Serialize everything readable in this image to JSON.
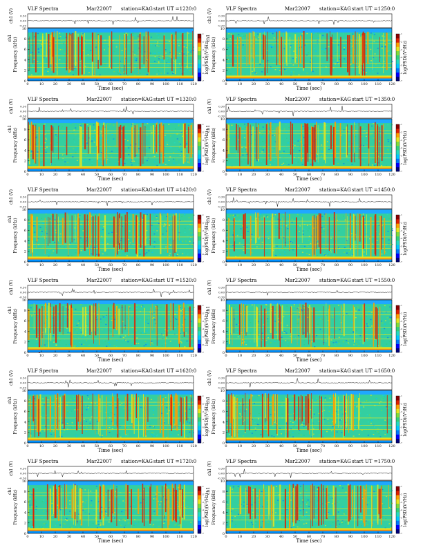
{
  "palette": [
    "#00007a",
    "#0000ff",
    "#0078ff",
    "#00c8ff",
    "#22dcc0",
    "#33d27a",
    "#7edc3c",
    "#e6e61e",
    "#ffa000",
    "#e02000",
    "#8a0000"
  ],
  "common": {
    "title": "VLF Spectra",
    "date": "Mar22007",
    "station": "station=KAG",
    "start_prefix": "start  UT =",
    "ch_label": "ch1 (V)",
    "freq_label": "Frequency  (kHz)",
    "time_label": "Time  (sec)",
    "cb_label": "log(PSD)(V²/Hz)",
    "ch_ticks": [
      "0.30",
      "0.00",
      "-0.30"
    ],
    "freq_ticks": [
      "10",
      "8",
      "6",
      "4",
      "2",
      "0"
    ],
    "time_ticks": [
      "0",
      "10",
      "20",
      "30",
      "40",
      "50",
      "60",
      "70",
      "80",
      "90",
      "100",
      "110",
      "120"
    ],
    "cb_ticks": [
      "-1",
      "-2",
      "-3",
      "-4",
      "-5",
      "-6",
      "-7"
    ]
  },
  "chart_data": [
    {
      "type": "heatmap",
      "panel": "1",
      "start_ut": "1220:0",
      "channel": "ch1",
      "xlabel": "Time  (sec)",
      "ylabel": "Frequency  (kHz)",
      "xlim": [
        0,
        120
      ],
      "ylim": [
        0,
        10
      ],
      "colorbar_label": "log(PSD)(V²/Hz)"
    },
    {
      "type": "heatmap",
      "panel": "2",
      "start_ut": "1250:0",
      "channel": "ch1",
      "xlabel": "Time  (sec)",
      "ylabel": "Frequency  (kHz)",
      "xlim": [
        0,
        120
      ],
      "ylim": [
        0,
        10
      ],
      "colorbar_label": "log(PSD)(V²/Hz)"
    },
    {
      "type": "heatmap",
      "panel": "3",
      "start_ut": "1320:0",
      "channel": "ch1",
      "xlabel": "Time  (sec)",
      "ylabel": "Frequency  (kHz)",
      "xlim": [
        0,
        120
      ],
      "ylim": [
        0,
        10
      ],
      "colorbar_label": "log(PSD)(V²/Hz)"
    },
    {
      "type": "heatmap",
      "panel": "4",
      "start_ut": "1350:0",
      "channel": "ch1",
      "xlabel": "Time  (sec)",
      "ylabel": "Frequency  (kHz)",
      "xlim": [
        0,
        120
      ],
      "ylim": [
        0,
        10
      ],
      "colorbar_label": "log(PSD)(V²/Hz)"
    },
    {
      "type": "heatmap",
      "panel": "5",
      "start_ut": "1420:0",
      "channel": "ch1",
      "xlabel": "Time  (sec)",
      "ylabel": "Frequency  (kHz)",
      "xlim": [
        0,
        120
      ],
      "ylim": [
        0,
        10
      ],
      "colorbar_label": "log(PSD)(V²/Hz)"
    },
    {
      "type": "heatmap",
      "panel": "6",
      "start_ut": "1450:0",
      "channel": "ch1",
      "xlabel": "Time  (sec)",
      "ylabel": "Frequency  (kHz)",
      "xlim": [
        0,
        120
      ],
      "ylim": [
        0,
        10
      ],
      "colorbar_label": "log(PSD)(V²/Hz)"
    },
    {
      "type": "heatmap",
      "panel": "7",
      "start_ut": "1520:0",
      "channel": "ch1",
      "xlabel": "Time  (sec)",
      "ylabel": "Frequency  (kHz)",
      "xlim": [
        0,
        120
      ],
      "ylim": [
        0,
        10
      ],
      "colorbar_label": "log(PSD)(V²/Hz)"
    },
    {
      "type": "heatmap",
      "panel": "8",
      "start_ut": "1550:0",
      "channel": "ch1",
      "xlabel": "Time  (sec)",
      "ylabel": "Frequency  (kHz)",
      "xlim": [
        0,
        120
      ],
      "ylim": [
        0,
        10
      ],
      "colorbar_label": "log(PSD)(V²/Hz)"
    },
    {
      "type": "heatmap",
      "panel": "9",
      "start_ut": "1620:0",
      "channel": "ch1",
      "xlabel": "Time  (sec)",
      "ylabel": "Frequency  (kHz)",
      "xlim": [
        0,
        120
      ],
      "ylim": [
        0,
        10
      ],
      "colorbar_label": "log(PSD)(V²/Hz)"
    },
    {
      "type": "heatmap",
      "panel": "10",
      "start_ut": "1650:0",
      "channel": "ch1",
      "xlabel": "Time  (sec)",
      "ylabel": "Frequency  (kHz)",
      "xlim": [
        0,
        120
      ],
      "ylim": [
        0,
        10
      ],
      "colorbar_label": "log(PSD)(V²/Hz)"
    },
    {
      "type": "heatmap",
      "panel": "11",
      "start_ut": "1720:0",
      "channel": "ch1",
      "xlabel": "Time  (sec)",
      "ylabel": "Frequency  (kHz)",
      "xlim": [
        0,
        120
      ],
      "ylim": [
        0,
        10
      ],
      "colorbar_label": "log(PSD)(V²/Hz)"
    },
    {
      "type": "heatmap",
      "panel": "12",
      "start_ut": "1750:0",
      "channel": "ch1",
      "xlabel": "Time  (sec)",
      "ylabel": "Frequency  (kHz)",
      "xlim": [
        0,
        120
      ],
      "ylim": [
        0,
        10
      ],
      "colorbar_label": "log(PSD)(V²/Hz)"
    }
  ]
}
